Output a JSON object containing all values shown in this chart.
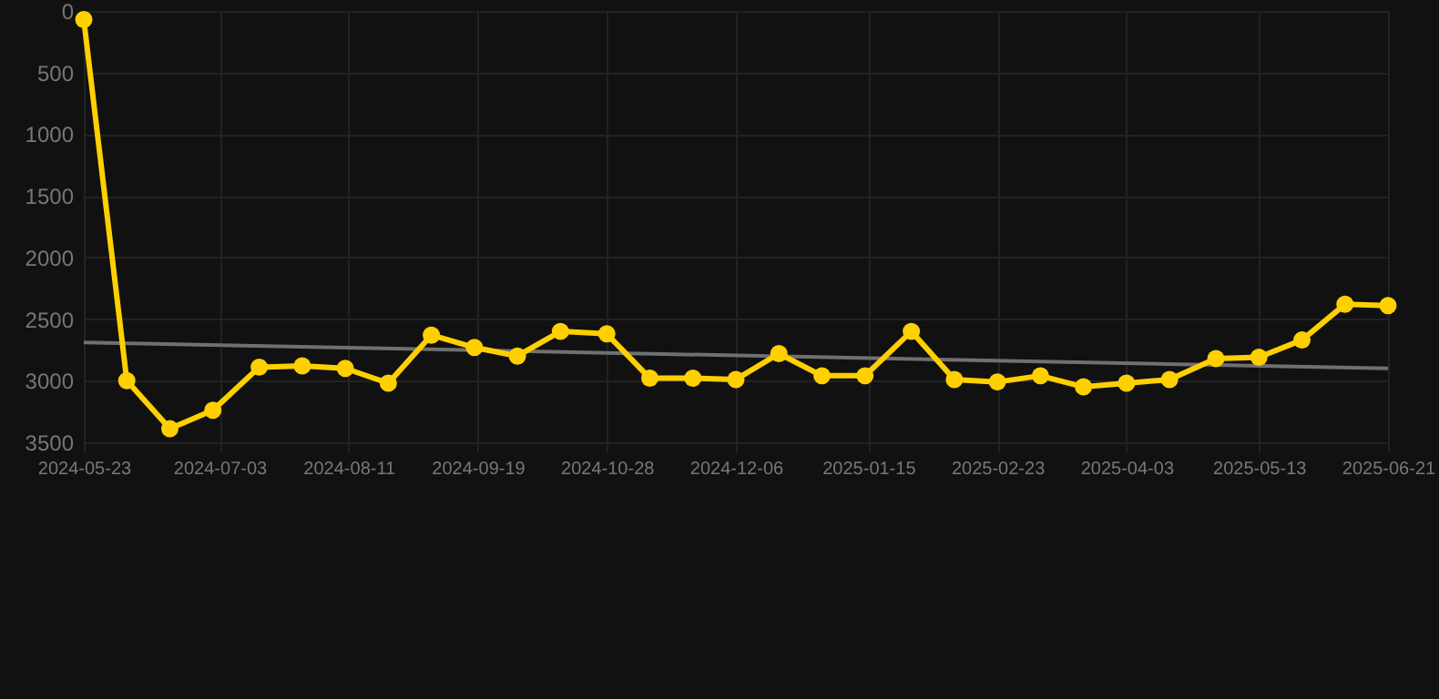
{
  "chart_data": {
    "type": "line",
    "x": [
      "2024-05-23",
      "2024-06-05",
      "2024-06-18",
      "2024-07-01",
      "2024-07-15",
      "2024-07-28",
      "2024-08-10",
      "2024-08-23",
      "2024-09-05",
      "2024-09-18",
      "2024-10-01",
      "2024-10-14",
      "2024-10-28",
      "2024-11-10",
      "2024-11-23",
      "2024-12-06",
      "2024-12-19",
      "2025-01-01",
      "2025-01-14",
      "2025-01-28",
      "2025-02-10",
      "2025-02-23",
      "2025-03-08",
      "2025-03-21",
      "2025-04-03",
      "2025-04-16",
      "2025-04-30",
      "2025-05-13",
      "2025-05-26",
      "2025-06-08",
      "2025-06-21"
    ],
    "series": [
      {
        "color": "#ffd000",
        "marker": "circle",
        "values": [
          70,
          3000,
          3390,
          3240,
          2890,
          2880,
          2900,
          3020,
          2630,
          2730,
          2800,
          2600,
          2620,
          2980,
          2980,
          2990,
          2780,
          2960,
          2960,
          2600,
          2990,
          3010,
          2960,
          3050,
          3020,
          2990,
          2820,
          2810,
          2670,
          2380,
          2390
        ]
      },
      {
        "type": "line",
        "color": "#707070",
        "marker": "none",
        "x": [
          "2024-05-23",
          "2025-06-21"
        ],
        "values": [
          2690,
          2900
        ]
      }
    ],
    "xlim": [
      "2024-05-23",
      "2025-06-21"
    ],
    "xticks": [
      "2024-05-23",
      "2024-07-03",
      "2024-08-11",
      "2024-09-19",
      "2024-10-28",
      "2024-12-06",
      "2025-01-15",
      "2025-02-23",
      "2025-04-03",
      "2025-05-13",
      "2025-06-21"
    ],
    "ylim": [
      3500,
      0
    ],
    "yticks": [
      0,
      500,
      1000,
      1500,
      2000,
      2500,
      3000,
      3500
    ],
    "grid": true,
    "line_style": "solid"
  }
}
